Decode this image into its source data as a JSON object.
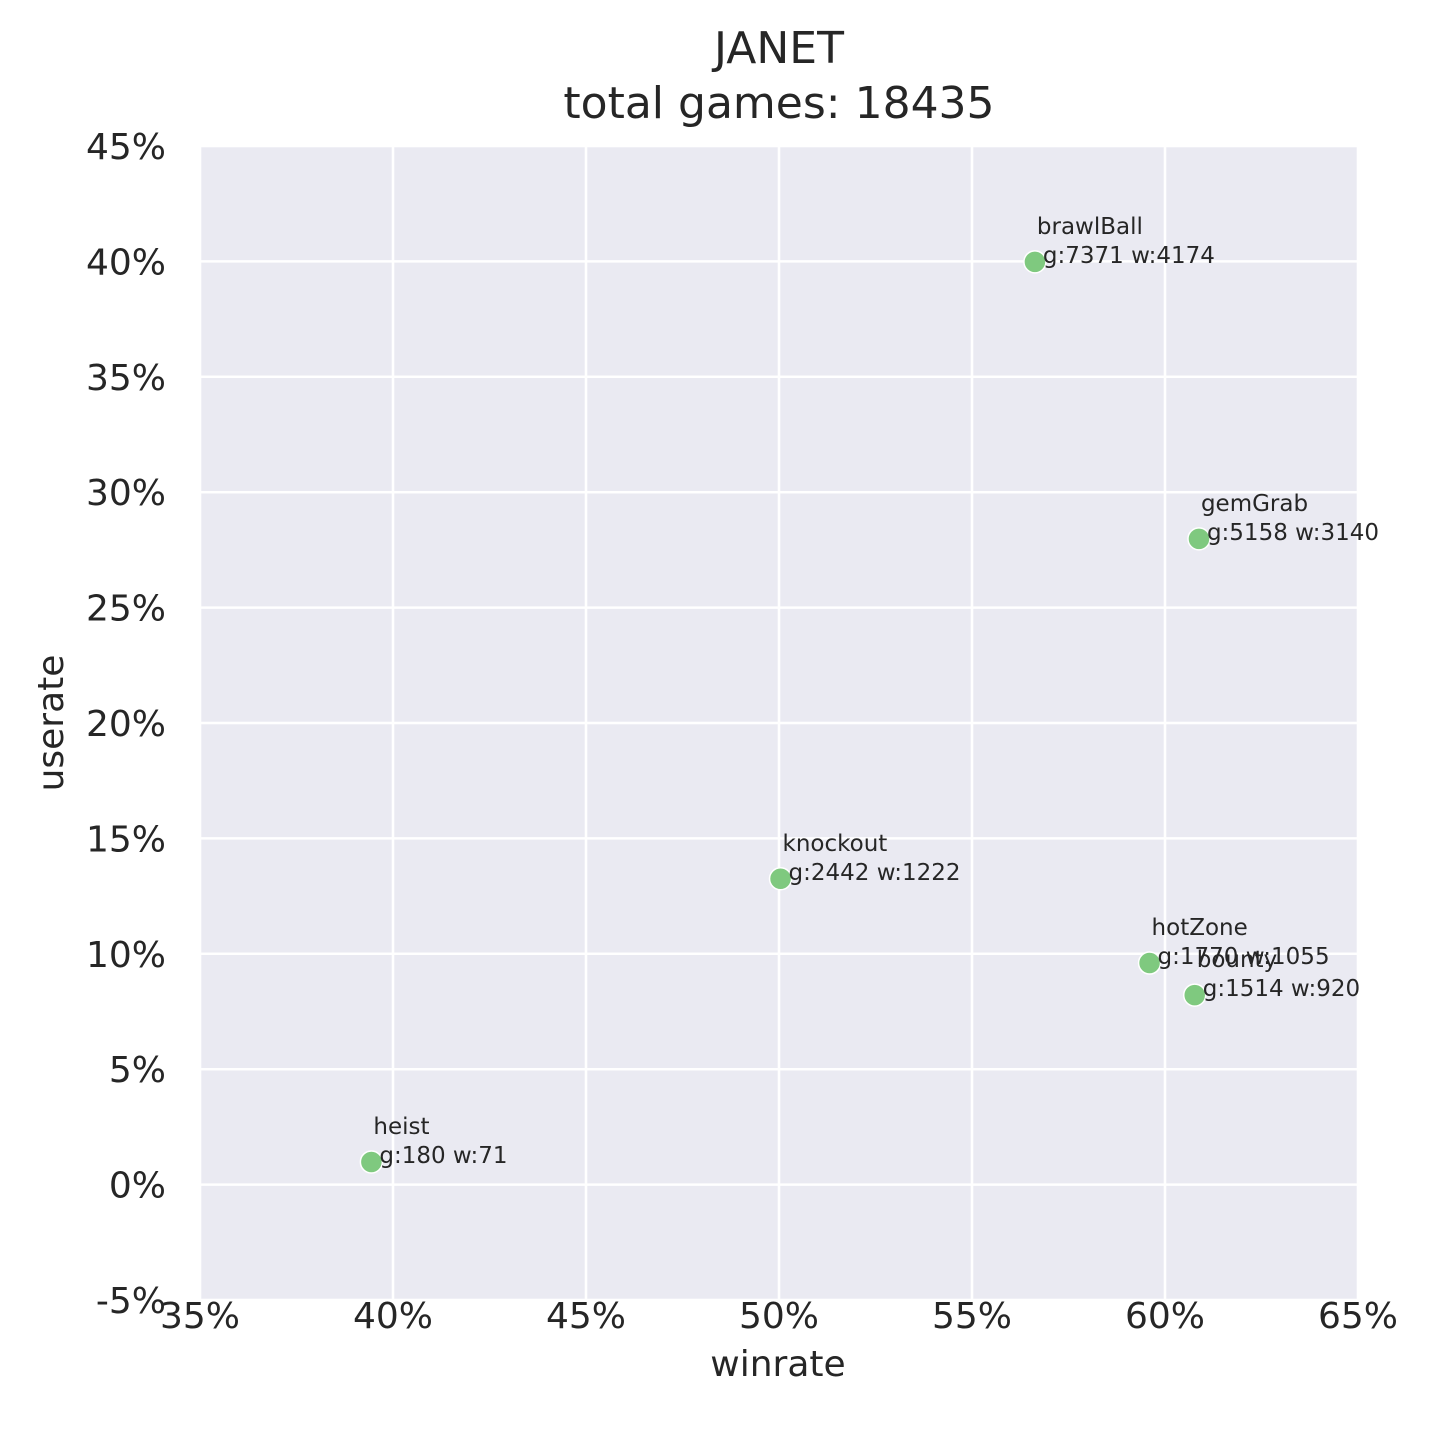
{
  "chart_data": {
    "type": "scatter",
    "title": "JANET",
    "subtitle": "total games: 18435",
    "xlabel": "winrate",
    "ylabel": "userate",
    "xlim": [
      0.35,
      0.65
    ],
    "ylim": [
      -0.05,
      0.45
    ],
    "x_ticks": [
      0.35,
      0.4,
      0.45,
      0.5,
      0.55,
      0.6,
      0.65
    ],
    "x_tick_labels": [
      "35%",
      "40%",
      "45%",
      "50%",
      "55%",
      "60%",
      "65%"
    ],
    "y_ticks": [
      -0.05,
      0.0,
      0.05,
      0.1,
      0.15,
      0.2,
      0.25,
      0.3,
      0.35,
      0.4,
      0.45
    ],
    "y_tick_labels": [
      "-5%",
      "0%",
      "5%",
      "10%",
      "15%",
      "20%",
      "25%",
      "30%",
      "35%",
      "40%",
      "45%"
    ],
    "grid": true,
    "background_color": "#eaeaf2",
    "grid_color": "#ffffff",
    "marker_color": "#7fc97f",
    "points": [
      {
        "name": "brawlBall",
        "detail": "g:7371 w:4174",
        "x": 0.5663,
        "y": 0.3998
      },
      {
        "name": "gemGrab",
        "detail": "g:5158 w:3140",
        "x": 0.6088,
        "y": 0.2798
      },
      {
        "name": "knockout",
        "detail": "g:2442 w:1222",
        "x": 0.5004,
        "y": 0.1325
      },
      {
        "name": "hotZone",
        "detail": "g:1770 w:1055",
        "x": 0.596,
        "y": 0.096
      },
      {
        "name": "bounty",
        "detail": "g:1514 w:920",
        "x": 0.6077,
        "y": 0.0821
      },
      {
        "name": "heist",
        "detail": "g:180 w:71",
        "x": 0.3944,
        "y": 0.0098
      }
    ]
  }
}
